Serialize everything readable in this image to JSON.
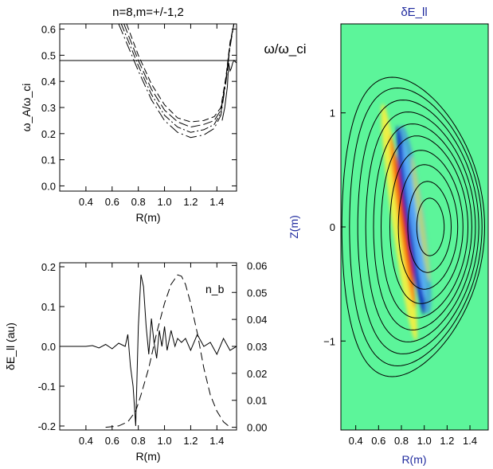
{
  "chart_data": [
    {
      "type": "line",
      "title": "n=8,m=+/-1,2",
      "xlabel": "R(m)",
      "ylabel": "ω_A/ω_ci",
      "annotation": "ω/ω_ci",
      "xlim": [
        0.2,
        1.55
      ],
      "ylim": [
        -0.02,
        0.62
      ],
      "xticks": [
        "0.4",
        "0.6",
        "0.8",
        "1.0",
        "1.2",
        "1.4"
      ],
      "yticks": [
        "0.0",
        "0.1",
        "0.2",
        "0.3",
        "0.4",
        "0.5",
        "0.6"
      ],
      "hline": 0.48,
      "series": [
        {
          "dash": "8,4",
          "x": [
            0.71,
            0.8,
            0.9,
            1.0,
            1.1,
            1.2,
            1.3,
            1.38,
            1.43,
            1.47,
            1.5,
            1.53
          ],
          "y": [
            0.62,
            0.5,
            0.39,
            0.31,
            0.26,
            0.245,
            0.25,
            0.265,
            0.3,
            0.42,
            0.55,
            0.62
          ]
        },
        {
          "dash": "12,4",
          "x": [
            0.69,
            0.8,
            0.9,
            1.0,
            1.1,
            1.2,
            1.3,
            1.38,
            1.43,
            1.47,
            1.5,
            1.53
          ],
          "y": [
            0.62,
            0.48,
            0.37,
            0.29,
            0.245,
            0.225,
            0.235,
            0.25,
            0.29,
            0.41,
            0.54,
            0.62
          ]
        },
        {
          "dash": "10,3,2,3",
          "x": [
            0.67,
            0.8,
            0.9,
            1.0,
            1.1,
            1.2,
            1.3,
            1.38,
            1.43,
            1.47,
            1.5,
            1.53
          ],
          "y": [
            0.62,
            0.46,
            0.35,
            0.27,
            0.225,
            0.205,
            0.215,
            0.235,
            0.28,
            0.41,
            0.54,
            0.62
          ]
        },
        {
          "dash": "14,4,2,4",
          "x": [
            0.65,
            0.8,
            0.9,
            1.0,
            1.1,
            1.2,
            1.3,
            1.38,
            1.43,
            1.47,
            1.5,
            1.53
          ],
          "y": [
            0.62,
            0.44,
            0.33,
            0.25,
            0.205,
            0.185,
            0.195,
            0.22,
            0.27,
            0.4,
            0.53,
            0.62
          ]
        },
        {
          "dash": "",
          "x": [
            1.44,
            1.46,
            1.48,
            1.49,
            1.5,
            1.51,
            1.52,
            1.53,
            1.55
          ],
          "y": [
            0.25,
            0.3,
            0.38,
            0.47,
            0.44,
            0.45,
            0.47,
            0.48,
            0.47
          ]
        }
      ]
    },
    {
      "type": "line",
      "xlabel": "R(m)",
      "ylabel": "δE_ll (au)",
      "xlim": [
        0.2,
        1.55
      ],
      "ylim": [
        -0.21,
        0.21
      ],
      "y2lim": [
        -0.001,
        0.061
      ],
      "xticks": [
        "0.4",
        "0.6",
        "0.8",
        "1.0",
        "1.2",
        "1.4"
      ],
      "yticks": [
        "-0.2",
        "-0.1",
        "0.0",
        "0.1",
        "0.2"
      ],
      "y2ticks": [
        "0.00",
        "0.01",
        "0.02",
        "0.03",
        "0.04",
        "0.05",
        "0.06"
      ],
      "legend_label": "n_b",
      "series": [
        {
          "axis": "left",
          "dash": "",
          "x": [
            0.2,
            0.3,
            0.4,
            0.45,
            0.5,
            0.55,
            0.6,
            0.65,
            0.7,
            0.72,
            0.74,
            0.76,
            0.78,
            0.8,
            0.82,
            0.84,
            0.86,
            0.88,
            0.9,
            0.92,
            0.94,
            0.96,
            0.98,
            1.0,
            1.02,
            1.05,
            1.08,
            1.1,
            1.13,
            1.16,
            1.2,
            1.25,
            1.3,
            1.35,
            1.4,
            1.45,
            1.5,
            1.55
          ],
          "y": [
            0.0,
            0.0,
            0.0,
            0.002,
            -0.004,
            0.005,
            -0.006,
            0.008,
            0.0,
            0.03,
            -0.05,
            -0.1,
            -0.2,
            0.05,
            0.18,
            0.15,
            0.05,
            -0.02,
            0.07,
            0.01,
            -0.03,
            0.04,
            0.0,
            0.05,
            -0.01,
            0.04,
            0.0,
            0.02,
            0.01,
            0.02,
            -0.01,
            0.03,
            0.0,
            0.01,
            -0.02,
            0.02,
            -0.01,
            0.0
          ]
        },
        {
          "axis": "right",
          "dash": "10,5",
          "x": [
            0.55,
            0.65,
            0.72,
            0.78,
            0.82,
            0.88,
            0.94,
            1.0,
            1.05,
            1.1,
            1.13,
            1.16,
            1.2,
            1.25,
            1.3,
            1.35,
            1.4,
            1.45,
            1.5
          ],
          "y": [
            0.0,
            0.0005,
            0.002,
            0.006,
            0.012,
            0.022,
            0.035,
            0.046,
            0.053,
            0.0565,
            0.056,
            0.053,
            0.046,
            0.035,
            0.022,
            0.012,
            0.006,
            0.002,
            0.0
          ]
        }
      ]
    },
    {
      "type": "heatmap",
      "title": "δE_ll",
      "xlabel": "R(m)",
      "ylabel": "Z(m)",
      "xlim": [
        0.27,
        1.56
      ],
      "ylim": [
        -1.78,
        1.78
      ],
      "xticks": [
        "0.4",
        "0.6",
        "0.8",
        "1.0",
        "1.2",
        "1.4"
      ],
      "yticks": [
        "-1",
        "0",
        "1"
      ],
      "background_color": "#5cf59a",
      "flux_surfaces": {
        "axis_R": 1.06,
        "axis_Z": 0.0,
        "radii": [
          0.12,
          0.19,
          0.26,
          0.32,
          0.38,
          0.43,
          0.48,
          0.53,
          0.58,
          0.625
        ],
        "vertical_scale": 2.1,
        "shift": 0.25,
        "triangularity": 0.3
      },
      "mode": {
        "center_R": 0.83,
        "center_Z": 0.05,
        "tilt": 0.14
      }
    }
  ]
}
